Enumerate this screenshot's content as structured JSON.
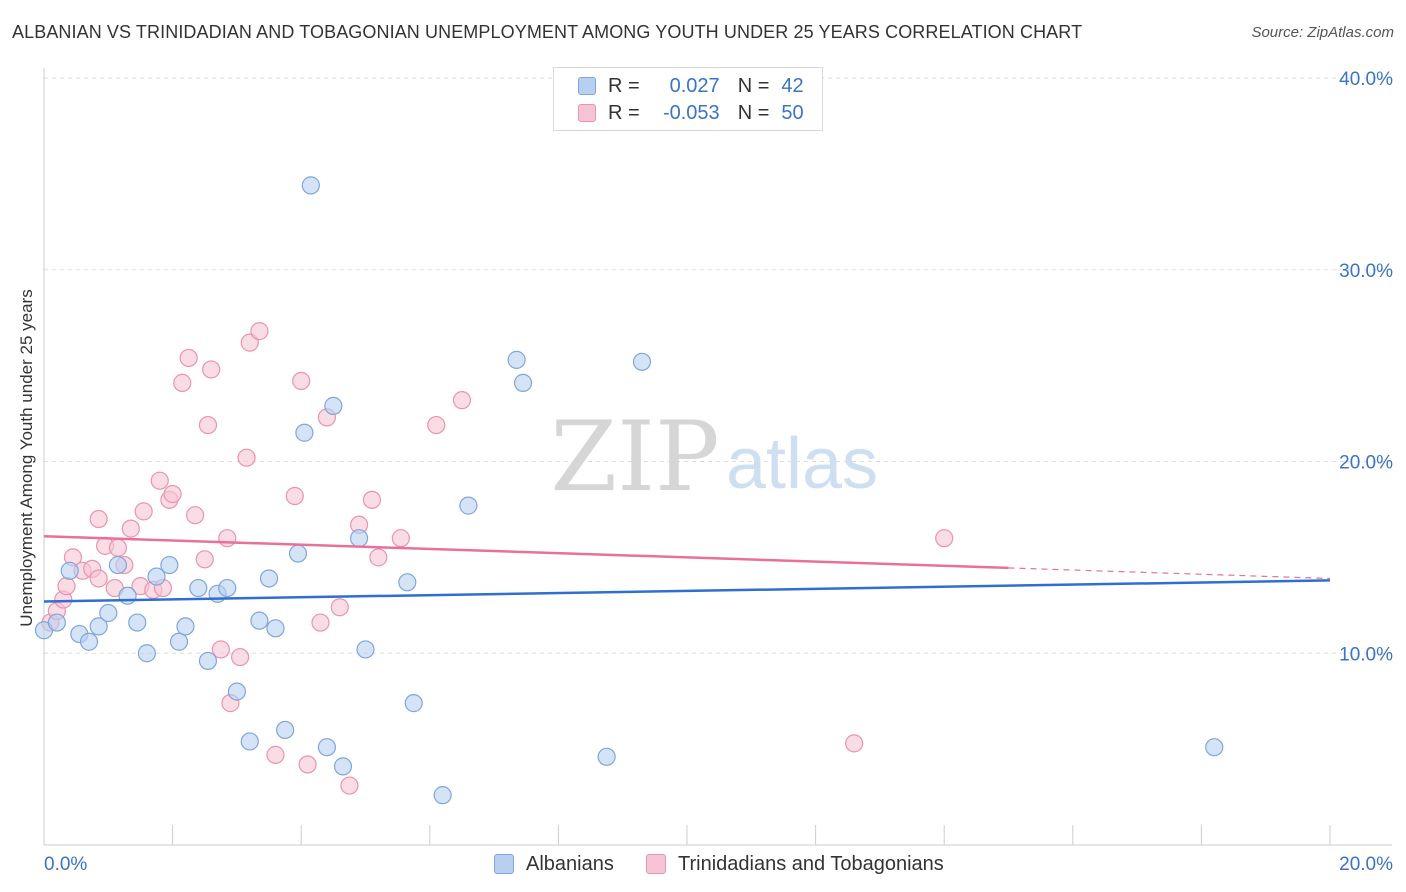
{
  "title": "ALBANIAN VS TRINIDADIAN AND TOBAGONIAN UNEMPLOYMENT AMONG YOUTH UNDER 25 YEARS CORRELATION CHART",
  "source": "Source: ZipAtlas.com",
  "watermark": {
    "zip": "ZIP",
    "atlas": "atlas"
  },
  "legend": {
    "rows": [
      {
        "r_label": "R =",
        "r_value": "0.027",
        "n_label": "N =",
        "n_value": "42"
      },
      {
        "r_label": "R =",
        "r_value": "-0.053",
        "n_label": "N =",
        "n_value": "50"
      }
    ]
  },
  "bottom_legend": {
    "albanians": "Albanians",
    "trinidadians": "Trinidadians and Tobagonians"
  },
  "colors": {
    "blue_fill": "#b8d0f0",
    "blue_stroke": "#7fa6dc",
    "blue_line": "#2e6fcf",
    "pink_fill": "#f7c4d4",
    "pink_stroke": "#eb93b0",
    "pink_line": "#e8709a",
    "axis_text": "#3a74c4",
    "grid": "#dddddd"
  },
  "chart_data": {
    "type": "scatter",
    "title": "ALBANIAN VS TRINIDADIAN AND TOBAGONIAN UNEMPLOYMENT AMONG YOUTH UNDER 25 YEARS CORRELATION CHART",
    "xlabel": "",
    "ylabel": "Unemployment Among Youth under 25 years",
    "xlim": [
      0,
      20
    ],
    "ylim": [
      0,
      40
    ],
    "x_tick_labels": [
      "0.0%",
      "20.0%"
    ],
    "y_ticks": [
      10,
      20,
      30,
      40
    ],
    "y_tick_labels": [
      "10.0%",
      "20.0%",
      "30.0%",
      "40.0%"
    ],
    "series": [
      {
        "name": "Albanians",
        "R": 0.027,
        "N": 42,
        "trend": {
          "x": [
            0,
            20
          ],
          "y": [
            12.7,
            13.8
          ],
          "dashed_from": null
        },
        "points": [
          [
            0.0,
            11.2
          ],
          [
            0.2,
            11.6
          ],
          [
            0.4,
            14.3
          ],
          [
            0.55,
            11.0
          ],
          [
            0.7,
            10.6
          ],
          [
            0.85,
            11.4
          ],
          [
            1.0,
            12.1
          ],
          [
            1.15,
            14.6
          ],
          [
            1.3,
            13.0
          ],
          [
            1.45,
            11.6
          ],
          [
            1.6,
            10.0
          ],
          [
            1.75,
            14.0
          ],
          [
            1.95,
            14.6
          ],
          [
            2.1,
            10.6
          ],
          [
            2.2,
            11.4
          ],
          [
            2.4,
            13.4
          ],
          [
            2.55,
            9.6
          ],
          [
            2.7,
            13.1
          ],
          [
            2.85,
            13.4
          ],
          [
            3.0,
            8.0
          ],
          [
            3.2,
            5.4
          ],
          [
            3.35,
            11.7
          ],
          [
            3.5,
            13.9
          ],
          [
            3.6,
            11.3
          ],
          [
            3.75,
            6.0
          ],
          [
            3.95,
            15.2
          ],
          [
            4.05,
            21.5
          ],
          [
            4.15,
            34.4
          ],
          [
            4.4,
            5.1
          ],
          [
            4.5,
            22.9
          ],
          [
            4.65,
            4.1
          ],
          [
            4.9,
            16.0
          ],
          [
            5.0,
            10.2
          ],
          [
            5.65,
            13.7
          ],
          [
            5.75,
            7.4
          ],
          [
            6.2,
            2.6
          ],
          [
            6.6,
            17.7
          ],
          [
            7.35,
            25.3
          ],
          [
            7.45,
            24.1
          ],
          [
            8.75,
            4.6
          ],
          [
            9.3,
            25.2
          ],
          [
            18.2,
            5.1
          ]
        ]
      },
      {
        "name": "Trinidadians and Tobagonians",
        "R": -0.053,
        "N": 50,
        "trend": {
          "x": [
            0,
            20
          ],
          "y": [
            16.1,
            13.9
          ],
          "dashed_from": 15
        },
        "points": [
          [
            0.1,
            11.6
          ],
          [
            0.2,
            12.2
          ],
          [
            0.3,
            12.8
          ],
          [
            0.35,
            13.5
          ],
          [
            0.45,
            15.0
          ],
          [
            0.6,
            14.3
          ],
          [
            0.75,
            14.4
          ],
          [
            0.85,
            13.9
          ],
          [
            0.85,
            17.0
          ],
          [
            0.95,
            15.6
          ],
          [
            1.1,
            13.4
          ],
          [
            1.15,
            15.5
          ],
          [
            1.25,
            14.6
          ],
          [
            1.35,
            16.5
          ],
          [
            1.5,
            13.5
          ],
          [
            1.55,
            17.4
          ],
          [
            1.7,
            13.3
          ],
          [
            1.85,
            13.4
          ],
          [
            1.8,
            19.0
          ],
          [
            1.95,
            18.0
          ],
          [
            2.0,
            18.3
          ],
          [
            2.15,
            24.1
          ],
          [
            2.25,
            25.4
          ],
          [
            2.35,
            17.2
          ],
          [
            2.5,
            14.9
          ],
          [
            2.55,
            21.9
          ],
          [
            2.6,
            24.8
          ],
          [
            2.75,
            10.2
          ],
          [
            2.85,
            16.0
          ],
          [
            2.9,
            7.4
          ],
          [
            3.05,
            9.8
          ],
          [
            3.15,
            20.2
          ],
          [
            3.2,
            26.2
          ],
          [
            3.35,
            26.8
          ],
          [
            3.6,
            4.7
          ],
          [
            3.9,
            18.2
          ],
          [
            4.0,
            24.2
          ],
          [
            4.1,
            4.2
          ],
          [
            4.3,
            11.6
          ],
          [
            4.4,
            22.3
          ],
          [
            4.6,
            12.4
          ],
          [
            4.75,
            3.1
          ],
          [
            4.9,
            16.7
          ],
          [
            5.1,
            18.0
          ],
          [
            5.2,
            15.0
          ],
          [
            5.55,
            16.0
          ],
          [
            6.1,
            21.9
          ],
          [
            6.5,
            23.2
          ],
          [
            12.6,
            5.3
          ],
          [
            14.0,
            16.0
          ]
        ]
      }
    ]
  }
}
